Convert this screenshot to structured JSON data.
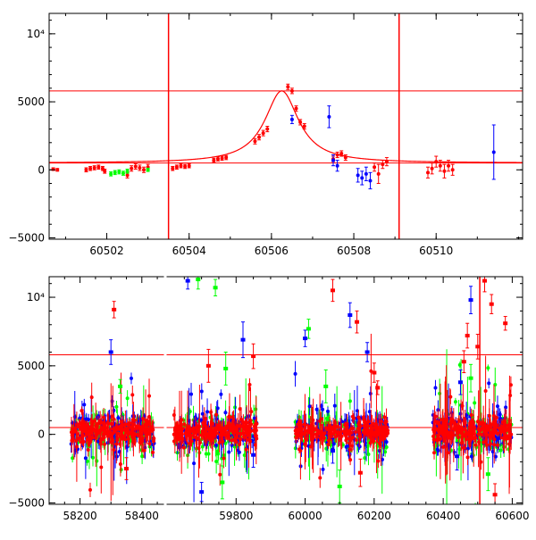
{
  "chart_data": [
    {
      "type": "scatter",
      "title": "",
      "xlabel": "",
      "ylabel": "",
      "xlim": [
        60500.6,
        60512.1
      ],
      "ylim": [
        -5100,
        11500
      ],
      "xticks": [
        60502,
        60504,
        60506,
        60508,
        60510
      ],
      "xtick_labels": [
        "60502",
        "60504",
        "60506",
        "60508",
        "60510"
      ],
      "yticks": [
        -5000,
        0,
        5000,
        10000
      ],
      "ytick_labels": [
        "−5000",
        "0",
        "5000",
        "10⁴"
      ],
      "hlines": [
        5800,
        500
      ],
      "vlines": [
        60503.5,
        60509.1
      ],
      "model_curve": {
        "t0": 60506.25,
        "peak": 5800,
        "baseline": 500,
        "width": 0.5,
        "color": "#ff0000"
      },
      "colors": {
        "red": "#ff0000",
        "green": "#00ff00",
        "blue": "#0000ff"
      },
      "series": [
        {
          "color": "red",
          "points": [
            [
              60500.7,
              50,
              100
            ],
            [
              60500.8,
              0,
              100
            ],
            [
              60501.5,
              0,
              150
            ],
            [
              60501.6,
              100,
              150
            ],
            [
              60501.7,
              150,
              150
            ],
            [
              60501.8,
              200,
              150
            ],
            [
              60501.9,
              100,
              150
            ],
            [
              60501.95,
              -100,
              150
            ],
            [
              60502.5,
              -400,
              200
            ],
            [
              60502.6,
              100,
              200
            ],
            [
              60502.7,
              250,
              200
            ],
            [
              60502.8,
              150,
              200
            ],
            [
              60502.9,
              0,
              200
            ],
            [
              60503.0,
              200,
              200
            ],
            [
              60503.6,
              100,
              150
            ],
            [
              60503.7,
              200,
              150
            ],
            [
              60503.8,
              300,
              150
            ],
            [
              60503.9,
              250,
              150
            ],
            [
              60504.0,
              300,
              150
            ],
            [
              60504.6,
              700,
              150
            ],
            [
              60504.7,
              800,
              150
            ],
            [
              60504.8,
              850,
              150
            ],
            [
              60504.9,
              900,
              150
            ],
            [
              60505.6,
              2100,
              200
            ],
            [
              60505.7,
              2400,
              200
            ],
            [
              60505.8,
              2700,
              200
            ],
            [
              60505.9,
              3000,
              200
            ],
            [
              60506.4,
              6100,
              200
            ],
            [
              60506.5,
              5800,
              200
            ],
            [
              60506.6,
              4500,
              200
            ],
            [
              60506.7,
              3500,
              200
            ],
            [
              60506.8,
              3200,
              200
            ],
            [
              60507.5,
              800,
              200
            ],
            [
              60507.6,
              1100,
              200
            ],
            [
              60507.7,
              1200,
              200
            ],
            [
              60507.8,
              900,
              200
            ],
            [
              60508.5,
              200,
              300
            ],
            [
              60508.6,
              -300,
              700
            ],
            [
              60508.7,
              400,
              300
            ],
            [
              60508.8,
              600,
              300
            ],
            [
              60509.8,
              -200,
              400
            ],
            [
              60509.9,
              100,
              400
            ],
            [
              60510.0,
              600,
              400
            ],
            [
              60510.1,
              300,
              400
            ],
            [
              60510.2,
              -100,
              500
            ],
            [
              60510.3,
              300,
              400
            ],
            [
              60510.4,
              0,
              400
            ]
          ]
        },
        {
          "color": "green",
          "points": [
            [
              60502.1,
              -300,
              150
            ],
            [
              60502.2,
              -200,
              150
            ],
            [
              60502.3,
              -150,
              150
            ],
            [
              60502.4,
              -250,
              150
            ],
            [
              60502.5,
              -100,
              150
            ],
            [
              60503.0,
              0,
              120
            ]
          ]
        },
        {
          "color": "blue",
          "points": [
            [
              60506.5,
              3700,
              300
            ],
            [
              60507.4,
              3900,
              800
            ],
            [
              60507.5,
              700,
              400
            ],
            [
              60507.6,
              300,
              400
            ],
            [
              60508.1,
              -400,
              500
            ],
            [
              60508.2,
              -600,
              500
            ],
            [
              60508.3,
              -300,
              500
            ],
            [
              60508.4,
              -800,
              600
            ],
            [
              60511.4,
              1300,
              2000
            ]
          ]
        }
      ]
    },
    {
      "type": "scatter",
      "title": "",
      "xlabel": "",
      "ylabel": "",
      "xlim": [
        58100,
        60630
      ],
      "axis_break": {
        "left": [
          58100,
          58470
        ],
        "right": [
          59600,
          60630
        ]
      },
      "ylim": [
        -5100,
        11500
      ],
      "xticks": [
        58200,
        58400,
        59800,
        60000,
        60200,
        60400,
        60600
      ],
      "xtick_labels": [
        "58200",
        "58400",
        "59800",
        "60000",
        "60200",
        "60400",
        "60600"
      ],
      "yticks": [
        -5000,
        0,
        5000,
        10000
      ],
      "ytick_labels": [
        "−5000",
        "0",
        "5000",
        "10⁴"
      ],
      "hlines": [
        5800,
        500
      ],
      "vlines": [
        60506
      ],
      "seasons": [
        {
          "start": 58170,
          "end": 58440
        },
        {
          "start": 59620,
          "end": 59860
        },
        {
          "start": 59970,
          "end": 60240
        },
        {
          "start": 60370,
          "end": 60600
        }
      ],
      "colors": {
        "red": "#ff0000",
        "green": "#00ff00",
        "blue": "#0000ff"
      },
      "outliers": [
        [
          "red",
          58310,
          9100,
          600
        ],
        [
          "green",
          58330,
          3500,
          500
        ],
        [
          "red",
          58350,
          -2500,
          800
        ],
        [
          "blue",
          58300,
          6000,
          900
        ],
        [
          "green",
          59690,
          11300,
          700
        ],
        [
          "green",
          59740,
          10700,
          600
        ],
        [
          "blue",
          59660,
          11200,
          600
        ],
        [
          "blue",
          59820,
          6900,
          1300
        ],
        [
          "red",
          59850,
          5700,
          900
        ],
        [
          "blue",
          59850,
          -1500,
          900
        ],
        [
          "green",
          59760,
          -3500,
          1200
        ],
        [
          "blue",
          59700,
          -4200,
          700
        ],
        [
          "red",
          59720,
          5000,
          1200
        ],
        [
          "green",
          59770,
          4800,
          1200
        ],
        [
          "green",
          60010,
          7700,
          700
        ],
        [
          "blue",
          60000,
          7000,
          600
        ],
        [
          "red",
          60080,
          10500,
          800
        ],
        [
          "blue",
          60130,
          8700,
          900
        ],
        [
          "red",
          60150,
          8200,
          800
        ],
        [
          "blue",
          60180,
          6000,
          700
        ],
        [
          "red",
          60200,
          4500,
          700
        ],
        [
          "green",
          60060,
          3500,
          1200
        ],
        [
          "green",
          60100,
          -3800,
          1200
        ],
        [
          "blue",
          60080,
          -1200,
          900
        ],
        [
          "red",
          60160,
          -2800,
          1000
        ],
        [
          "red",
          60210,
          3400,
          500
        ],
        [
          "blue",
          60450,
          3800,
          900
        ],
        [
          "red",
          60460,
          5300,
          800
        ],
        [
          "green",
          60480,
          4100,
          1000
        ],
        [
          "red",
          60500,
          6400,
          900
        ],
        [
          "blue",
          60480,
          9800,
          1000
        ],
        [
          "red",
          60540,
          9500,
          700
        ],
        [
          "red",
          60580,
          8100,
          500
        ],
        [
          "red",
          60520,
          11200,
          800
        ],
        [
          "red",
          60550,
          -4400,
          800
        ],
        [
          "blue",
          60440,
          -1600,
          1000
        ],
        [
          "green",
          60530,
          -2900,
          1200
        ],
        [
          "red",
          60470,
          7200,
          900
        ]
      ]
    }
  ]
}
